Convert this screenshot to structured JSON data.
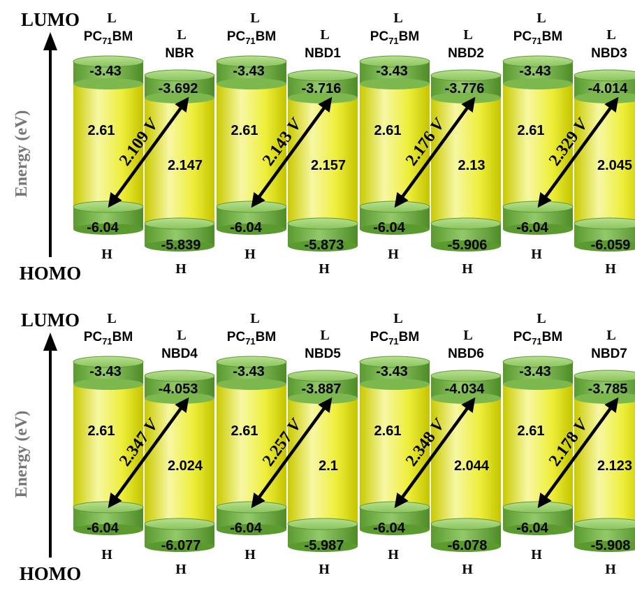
{
  "axis": {
    "lumo_label": "LUMO",
    "homo_label": "HOMO",
    "energy_label": "Energy (eV)"
  },
  "acceptor": {
    "name": "PC71BM",
    "lumo": "-3.43",
    "homo": "-6.04",
    "gap": "2.61"
  },
  "level_markers": {
    "lumo": "L",
    "homo": "H"
  },
  "colors": {
    "cylinder_body_light": "#f6f69a",
    "cylinder_body_dark": "#dede00",
    "cap_green": "#6fb13f",
    "cap_green_light": "#a7d87a",
    "arrow": "#000000"
  },
  "rows": [
    {
      "donors": [
        {
          "name": "NBR",
          "lumo": "-3.692",
          "homo": "-5.839",
          "gap": "2.147",
          "voc": "2.109"
        },
        {
          "name": "NBD1",
          "lumo": "-3.716",
          "homo": "-5.873",
          "gap": "2.157",
          "voc": "2.143"
        },
        {
          "name": "NBD2",
          "lumo": "-3.776",
          "homo": "-5.906",
          "gap": "2.13",
          "voc": "2.176"
        },
        {
          "name": "NBD3",
          "lumo": "-4.014",
          "homo": "-6.059",
          "gap": "2.045",
          "voc": "2.329"
        }
      ]
    },
    {
      "donors": [
        {
          "name": "NBD4",
          "lumo": "-4.053",
          "homo": "-6.077",
          "gap": "2.024",
          "voc": "2.347"
        },
        {
          "name": "NBD5",
          "lumo": "-3.887",
          "homo": "-5.987",
          "gap": "2.1",
          "voc": "2.257"
        },
        {
          "name": "NBD6",
          "lumo": "-4.034",
          "homo": "-6.078",
          "gap": "2.044",
          "voc": "2.348"
        },
        {
          "name": "NBD7",
          "lumo": "-3.785",
          "homo": "-5.908",
          "gap": "2.123",
          "voc": "2.178"
        }
      ]
    }
  ]
}
